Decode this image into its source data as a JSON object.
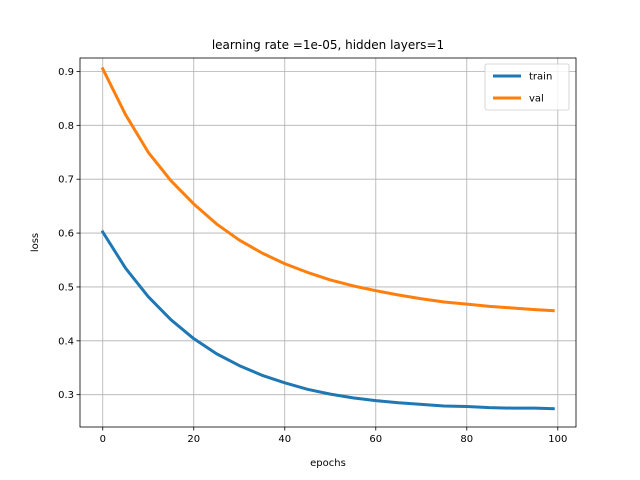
{
  "chart_data": {
    "type": "line",
    "title": "learning rate =1e-05, hidden layers=1",
    "xlabel": "epochs",
    "ylabel": "loss",
    "xlim": [
      -5,
      104
    ],
    "ylim": [
      0.24,
      0.925
    ],
    "xticks": [
      0,
      20,
      40,
      60,
      80,
      100
    ],
    "yticks": [
      0.3,
      0.4,
      0.5,
      0.6,
      0.7,
      0.8,
      0.9
    ],
    "grid": true,
    "legend_position": "top-right",
    "x": [
      0,
      5,
      10,
      15,
      20,
      25,
      30,
      35,
      40,
      45,
      50,
      55,
      60,
      65,
      70,
      75,
      80,
      85,
      90,
      95,
      99
    ],
    "series": [
      {
        "name": "train",
        "color": "#1f77b4",
        "values": [
          0.602,
          0.535,
          0.482,
          0.439,
          0.404,
          0.376,
          0.354,
          0.336,
          0.322,
          0.31,
          0.301,
          0.294,
          0.289,
          0.285,
          0.282,
          0.279,
          0.278,
          0.276,
          0.275,
          0.275,
          0.274
        ]
      },
      {
        "name": "val",
        "color": "#ff7f0e",
        "values": [
          0.905,
          0.82,
          0.75,
          0.697,
          0.654,
          0.617,
          0.587,
          0.563,
          0.543,
          0.527,
          0.513,
          0.502,
          0.493,
          0.485,
          0.478,
          0.472,
          0.468,
          0.464,
          0.461,
          0.458,
          0.456
        ]
      }
    ]
  }
}
